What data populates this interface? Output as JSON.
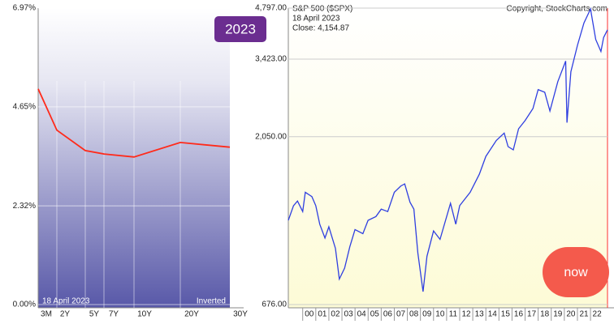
{
  "chart_data": [
    {
      "type": "line",
      "categories": [
        "3M",
        "2Y",
        "5Y",
        "7Y",
        "10Y",
        "20Y",
        "30Y"
      ],
      "values": [
        5.07,
        4.1,
        3.62,
        3.54,
        3.47,
        3.81,
        3.7
      ],
      "color": "#ff2a1a",
      "ylim": [
        0,
        6.97
      ],
      "yticks": [
        {
          "value": 0,
          "label": "0.00%"
        },
        {
          "value": 2.32,
          "label": "2.32%"
        },
        {
          "value": 4.65,
          "label": "4.65%"
        },
        {
          "value": 6.97,
          "label": "6.97%"
        }
      ],
      "grid": true,
      "date_label": "18  April 2023",
      "status": "Inverted"
    },
    {
      "type": "line",
      "title": "S&P 500 ($SPX)",
      "date_label": "18  April 2023",
      "close_label": "Close: 4,154.87",
      "copyright": "Copyright, StockCharts.com",
      "log_scale": true,
      "color": "#2f3fe0",
      "x": [
        1998.9,
        1999.3,
        1999.6,
        2000.0,
        2000.2,
        2000.7,
        2001.0,
        2001.3,
        2001.7,
        2002.0,
        2002.5,
        2002.8,
        2003.2,
        2003.6,
        2004.0,
        2004.6,
        2005.0,
        2005.6,
        2006.0,
        2006.5,
        2007.0,
        2007.5,
        2007.8,
        2008.2,
        2008.5,
        2008.8,
        2009.2,
        2009.5,
        2010.0,
        2010.5,
        2011.3,
        2011.7,
        2012.0,
        2012.8,
        2013.5,
        2014.0,
        2014.8,
        2015.4,
        2015.7,
        2016.1,
        2016.5,
        2017.0,
        2017.6,
        2018.0,
        2018.5,
        2018.9,
        2019.5,
        2020.1,
        2020.2,
        2020.5,
        2021.0,
        2021.5,
        2022.0,
        2022.4,
        2022.8,
        2023.0,
        2023.3
      ],
      "values": [
        1180,
        1300,
        1340,
        1250,
        1420,
        1380,
        1300,
        1150,
        1050,
        1130,
        980,
        800,
        860,
        990,
        1110,
        1080,
        1180,
        1210,
        1270,
        1250,
        1420,
        1480,
        1500,
        1330,
        1270,
        950,
        736,
        930,
        1100,
        1040,
        1320,
        1150,
        1300,
        1420,
        1600,
        1800,
        2000,
        2100,
        1920,
        1880,
        2160,
        2280,
        2470,
        2800,
        2750,
        2430,
        2950,
        3380,
        2250,
        3150,
        3750,
        4350,
        4770,
        3900,
        3600,
        3950,
        4154.87
      ],
      "xlim": [
        1998.9,
        2023.3
      ],
      "xticks": [
        {
          "value": 2000,
          "label": "00"
        },
        {
          "value": 2001,
          "label": "01"
        },
        {
          "value": 2002,
          "label": "02"
        },
        {
          "value": 2003,
          "label": "03"
        },
        {
          "value": 2004,
          "label": "04"
        },
        {
          "value": 2005,
          "label": "05"
        },
        {
          "value": 2006,
          "label": "06"
        },
        {
          "value": 2007,
          "label": "07"
        },
        {
          "value": 2008,
          "label": "08"
        },
        {
          "value": 2009,
          "label": "09"
        },
        {
          "value": 2010,
          "label": "10"
        },
        {
          "value": 2011,
          "label": "11"
        },
        {
          "value": 2012,
          "label": "12"
        },
        {
          "value": 2013,
          "label": "13"
        },
        {
          "value": 2014,
          "label": "14"
        },
        {
          "value": 2015,
          "label": "15"
        },
        {
          "value": 2016,
          "label": "16"
        },
        {
          "value": 2017,
          "label": "17"
        },
        {
          "value": 2018,
          "label": "18"
        },
        {
          "value": 2019,
          "label": "19"
        },
        {
          "value": 2020,
          "label": "20"
        },
        {
          "value": 2021,
          "label": "21"
        },
        {
          "value": 2022,
          "label": "22"
        }
      ],
      "ylim": [
        676,
        4797
      ],
      "yticks": [
        {
          "value": 676,
          "label": "676.00"
        },
        {
          "value": 2050,
          "label": "2,050.00"
        },
        {
          "value": 3423,
          "label": "3,423.00"
        },
        {
          "value": 4797,
          "label": "4,797.00"
        }
      ],
      "grid": true
    }
  ],
  "badge": "2023",
  "button": "now"
}
